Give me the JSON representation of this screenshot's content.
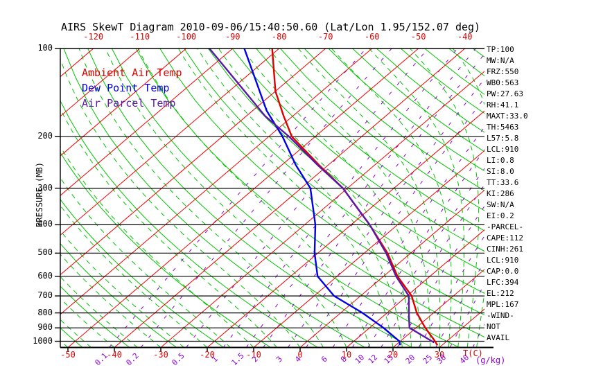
{
  "chart_data": {
    "type": "line",
    "variant": "skewt-log-p",
    "title": "AIRS SkewT Diagram 2010-09-06/15:40:50.60 (Lat/Lon 1.95/152.07 deg)",
    "x_axis": {
      "unit_label": "T(C)",
      "top_ticks_c": [
        -120,
        -110,
        -100,
        -90,
        -80,
        -70,
        -60,
        -50,
        -40
      ],
      "bottom_ticks_c": [
        -50,
        -40,
        -30,
        -20,
        -10,
        0,
        10,
        20,
        30
      ]
    },
    "y_axis": {
      "label": "PRESSURE (MB)",
      "scale": "log",
      "range_mb": [
        100,
        1050
      ],
      "ticks_mb": [
        100,
        200,
        300,
        400,
        500,
        600,
        700,
        800,
        900,
        1000
      ]
    },
    "mixing_ratio": {
      "unit_label": "(g/kg)",
      "values_g_kg": [
        0.1,
        0.2,
        0.5,
        1,
        1.5,
        2,
        3,
        4,
        6,
        8,
        10,
        12,
        15,
        20,
        25,
        30,
        40
      ]
    },
    "grid": {
      "isotherms_c": {
        "min": -160,
        "max": 40,
        "step": 10
      },
      "dry_adiabats_theta_c": {
        "min": -80,
        "max": 190,
        "step": 10
      },
      "moist_adiabats_thetaw_c": {
        "ranges": [
          {
            "min": -55,
            "max": 20,
            "step": 5
          },
          {
            "min": 22,
            "max": 38,
            "step": 2
          }
        ]
      },
      "colors": {
        "isotherm": "#f00000",
        "adiabat": "#00c400",
        "mixing": "#8a00d4",
        "pressure_line": "#000000"
      }
    },
    "legend": [
      {
        "label": "Ambient Air Temp",
        "color": "#e00000"
      },
      {
        "label": "Dew Point Temp",
        "color": "#0000e8"
      },
      {
        "label": "Air Parcel Temp",
        "color": "#5a18a8"
      }
    ],
    "series": [
      {
        "name": "ambient_air_temp",
        "color": "#e00000",
        "points_p_mb_t_c": [
          [
            100,
            -81.5
          ],
          [
            140,
            -70
          ],
          [
            170,
            -62
          ],
          [
            200,
            -55
          ],
          [
            250,
            -42
          ],
          [
            300,
            -31
          ],
          [
            350,
            -23
          ],
          [
            400,
            -16
          ],
          [
            500,
            -5
          ],
          [
            600,
            3
          ],
          [
            700,
            11
          ],
          [
            800,
            16.4
          ],
          [
            900,
            22
          ],
          [
            1000,
            27.5
          ],
          [
            1032,
            29
          ]
        ]
      },
      {
        "name": "dew_point_temp",
        "color": "#0000e8",
        "points_p_mb_t_c": [
          [
            100,
            -87.5
          ],
          [
            163,
            -67
          ],
          [
            200,
            -57
          ],
          [
            250,
            -47
          ],
          [
            300,
            -38
          ],
          [
            400,
            -27.7
          ],
          [
            500,
            -20.7
          ],
          [
            600,
            -14.2
          ],
          [
            700,
            -5.7
          ],
          [
            800,
            4.7
          ],
          [
            900,
            13
          ],
          [
            1000,
            19.8
          ],
          [
            1032,
            21
          ]
        ]
      },
      {
        "name": "air_parcel_temp",
        "color": "#5a18a8",
        "points_p_mb_t_c": [
          [
            100,
            -95
          ],
          [
            170,
            -66
          ],
          [
            200,
            -55.6
          ],
          [
            250,
            -42.3
          ],
          [
            300,
            -31
          ],
          [
            400,
            -16
          ],
          [
            500,
            -5.3
          ],
          [
            600,
            2.7
          ],
          [
            700,
            10.4
          ],
          [
            825,
            15.7
          ],
          [
            900,
            18.6
          ],
          [
            1010,
            27.6
          ]
        ]
      }
    ]
  },
  "stats_panel": {
    "items": [
      "TP:100",
      "MW:N/A",
      "FRZ:550",
      "WB0:563",
      "PW:27.63",
      "RH:41.1",
      "MAXT:33.0",
      "TH:5463",
      "L57:5.8",
      "LCL:910",
      "LI:0.8",
      "SI:8.0",
      "TT:33.6",
      "KI:286",
      "SW:N/A",
      "EI:0.2",
      "-PARCEL-",
      "CAPE:112",
      "CINH:261",
      "LCL:910",
      "CAP:0.0",
      "LFC:394",
      "EL:212",
      "MPL:167",
      "-WIND-",
      "NOT",
      "AVAIL"
    ]
  }
}
